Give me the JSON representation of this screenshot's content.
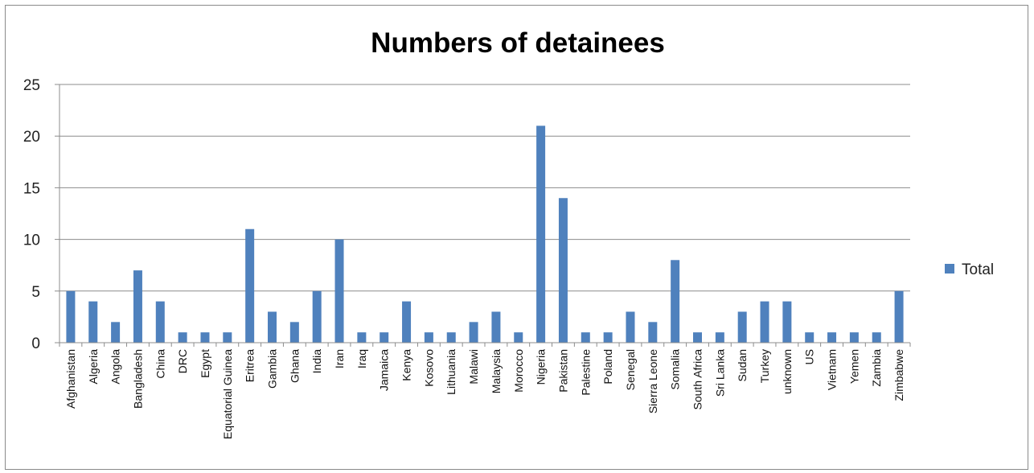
{
  "chart_data": {
    "type": "bar",
    "title": "Numbers of detainees",
    "xlabel": "",
    "ylabel": "",
    "ylim": [
      0,
      25
    ],
    "yticks": [
      0,
      5,
      10,
      15,
      20,
      25
    ],
    "grid": true,
    "legend_position": "right",
    "categories": [
      "Afghanistan",
      "Algeria",
      "Angola",
      "Bangladesh",
      "China",
      "DRC",
      "Egypt",
      "Equatorial Guinea",
      "Eritrea",
      "Gambia",
      "Ghana",
      "India",
      "Iran",
      "Iraq",
      "Jamaica",
      "Kenya",
      "Kosovo",
      "Lithuania",
      "Malawi",
      "Malaysia",
      "Morocco",
      "Nigeria",
      "Pakistan",
      "Palestine",
      "Poland",
      "Senegal",
      "Sierra Leone",
      "Somalia",
      "South Africa",
      "Sri Lanka",
      "Sudan",
      "Turkey",
      "unknown",
      "US",
      "Vietnam",
      "Yemen",
      "Zambia",
      "Zimbabwe"
    ],
    "series": [
      {
        "name": "Total",
        "color": "#4f81bd",
        "values": [
          5,
          4,
          2,
          7,
          4,
          1,
          1,
          1,
          11,
          3,
          2,
          5,
          10,
          1,
          1,
          4,
          1,
          1,
          2,
          3,
          1,
          21,
          14,
          1,
          1,
          3,
          2,
          8,
          1,
          1,
          3,
          4,
          4,
          1,
          1,
          1,
          1,
          5
        ]
      }
    ]
  }
}
